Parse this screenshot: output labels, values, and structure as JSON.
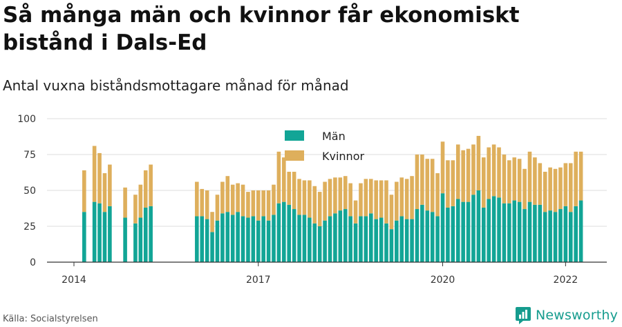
{
  "header": {
    "title": "Så många män och kvinnor får ekonomiskt bistånd i Dals-Ed",
    "subtitle": "Antal vuxna biståndsmottagare månad för månad"
  },
  "footer": {
    "source": "Källa: Socialstyrelsen",
    "brand": "Newsworthy"
  },
  "colors": {
    "men": "#12a596",
    "women": "#deaf5c",
    "grid": "#dddddd",
    "axis": "#333333"
  },
  "chart_data": {
    "type": "bar",
    "stacked": true,
    "ylim": [
      0,
      100
    ],
    "y_ticks": [
      0,
      25,
      50,
      75,
      100
    ],
    "x_ticks": [
      "2014",
      "2017",
      "2020",
      "2022"
    ],
    "legend": [
      "Män",
      "Kvinnor"
    ],
    "legend_position": "top-center",
    "grid": true,
    "series": [
      {
        "name": "Män",
        "x": [
          "2014-03",
          "2014-05",
          "2014-06",
          "2014-07",
          "2014-08",
          "2014-11",
          "2015-01",
          "2015-02",
          "2015-03",
          "2015-04",
          "2016-01",
          "2016-02",
          "2016-03",
          "2016-04",
          "2016-05",
          "2016-06",
          "2016-07",
          "2016-08",
          "2016-09",
          "2016-10",
          "2016-11",
          "2016-12",
          "2017-01",
          "2017-02",
          "2017-03",
          "2017-04",
          "2017-05",
          "2017-06",
          "2017-07",
          "2017-08",
          "2017-09",
          "2017-10",
          "2017-11",
          "2017-12",
          "2018-01",
          "2018-02",
          "2018-03",
          "2018-04",
          "2018-05",
          "2018-06",
          "2018-07",
          "2018-08",
          "2018-09",
          "2018-10",
          "2018-11",
          "2018-12",
          "2019-01",
          "2019-02",
          "2019-03",
          "2019-04",
          "2019-05",
          "2019-06",
          "2019-07",
          "2019-08",
          "2019-09",
          "2019-10",
          "2019-11",
          "2019-12",
          "2020-01",
          "2020-02",
          "2020-03",
          "2020-04",
          "2020-05",
          "2020-06",
          "2020-07",
          "2020-08",
          "2020-09",
          "2020-10",
          "2020-11",
          "2020-12",
          "2021-01",
          "2021-02",
          "2021-03",
          "2021-04",
          "2021-05",
          "2021-06",
          "2021-07",
          "2021-08",
          "2021-09",
          "2021-10",
          "2021-11",
          "2021-12",
          "2022-01",
          "2022-02",
          "2022-03",
          "2022-04"
        ],
        "values": [
          35,
          42,
          41,
          35,
          39,
          31,
          27,
          31,
          38,
          39,
          32,
          32,
          30,
          21,
          29,
          34,
          35,
          33,
          35,
          32,
          31,
          32,
          29,
          32,
          29,
          33,
          41,
          42,
          40,
          37,
          33,
          33,
          31,
          27,
          25,
          29,
          32,
          34,
          36,
          37,
          32,
          27,
          32,
          32,
          34,
          30,
          31,
          27,
          23,
          29,
          32,
          30,
          30,
          37,
          40,
          36,
          35,
          32,
          48,
          38,
          39,
          44,
          42,
          42,
          47,
          50,
          38,
          44,
          46,
          45,
          41,
          41,
          43,
          42,
          37,
          42,
          40,
          40,
          35,
          36,
          35,
          37,
          39,
          35,
          39,
          43
        ]
      },
      {
        "name": "Kvinnor",
        "x": [
          "2014-03",
          "2014-05",
          "2014-06",
          "2014-07",
          "2014-08",
          "2014-11",
          "2015-01",
          "2015-02",
          "2015-03",
          "2015-04",
          "2016-01",
          "2016-02",
          "2016-03",
          "2016-04",
          "2016-05",
          "2016-06",
          "2016-07",
          "2016-08",
          "2016-09",
          "2016-10",
          "2016-11",
          "2016-12",
          "2017-01",
          "2017-02",
          "2017-03",
          "2017-04",
          "2017-05",
          "2017-06",
          "2017-07",
          "2017-08",
          "2017-09",
          "2017-10",
          "2017-11",
          "2017-12",
          "2018-01",
          "2018-02",
          "2018-03",
          "2018-04",
          "2018-05",
          "2018-06",
          "2018-07",
          "2018-08",
          "2018-09",
          "2018-10",
          "2018-11",
          "2018-12",
          "2019-01",
          "2019-02",
          "2019-03",
          "2019-04",
          "2019-05",
          "2019-06",
          "2019-07",
          "2019-08",
          "2019-09",
          "2019-10",
          "2019-11",
          "2019-12",
          "2020-01",
          "2020-02",
          "2020-03",
          "2020-04",
          "2020-05",
          "2020-06",
          "2020-07",
          "2020-08",
          "2020-09",
          "2020-10",
          "2020-11",
          "2020-12",
          "2021-01",
          "2021-02",
          "2021-03",
          "2021-04",
          "2021-05",
          "2021-06",
          "2021-07",
          "2021-08",
          "2021-09",
          "2021-10",
          "2021-11",
          "2021-12",
          "2022-01",
          "2022-02",
          "2022-03",
          "2022-04"
        ],
        "values": [
          29,
          39,
          35,
          27,
          29,
          21,
          20,
          23,
          26,
          29,
          24,
          19,
          20,
          14,
          18,
          22,
          25,
          21,
          20,
          22,
          18,
          18,
          21,
          18,
          21,
          21,
          36,
          31,
          23,
          26,
          25,
          24,
          26,
          26,
          24,
          27,
          26,
          25,
          23,
          23,
          23,
          16,
          23,
          26,
          24,
          27,
          26,
          30,
          24,
          27,
          27,
          28,
          30,
          38,
          35,
          36,
          37,
          30,
          36,
          33,
          32,
          38,
          36,
          37,
          35,
          38,
          35,
          36,
          36,
          35,
          34,
          30,
          30,
          30,
          28,
          35,
          33,
          29,
          28,
          30,
          30,
          29,
          30,
          34,
          38,
          34
        ]
      }
    ]
  }
}
